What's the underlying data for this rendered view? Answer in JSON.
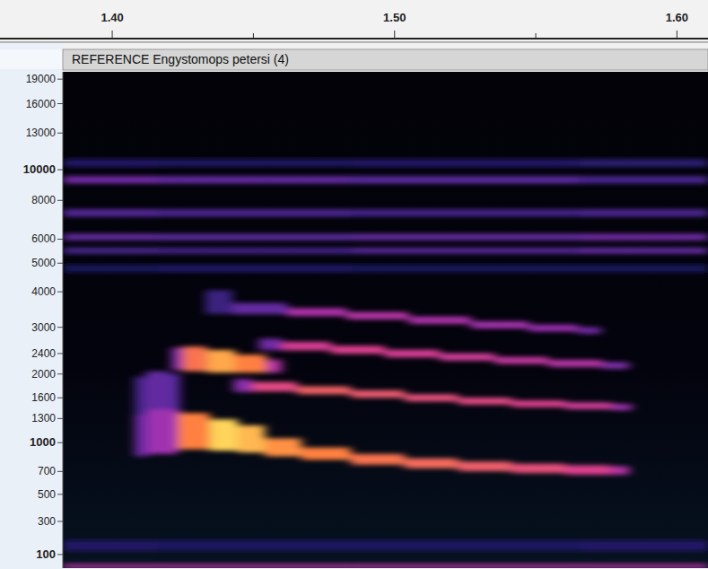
{
  "chart_data": {
    "type": "spectrogram",
    "title": "REFERENCE Engystomops petersi (4)",
    "xlim": [
      1.3825,
      1.611
    ],
    "ylim": [
      30,
      20000
    ],
    "xticks": [
      {
        "value": 1.4,
        "label": "1.40"
      },
      {
        "value": 1.5,
        "label": "1.50"
      },
      {
        "value": 1.6,
        "label": "1.60"
      }
    ],
    "xticks_minor": [
      1.45,
      1.55
    ],
    "yticks": [
      100,
      300,
      500,
      700,
      1000,
      1300,
      1600,
      2000,
      2400,
      3000,
      4000,
      5000,
      6000,
      8000,
      10000,
      13000,
      16000,
      19000
    ],
    "series": [
      {
        "x": [
          1.3825,
          1.45,
          1.52,
          1.611
        ],
        "values": [
          150,
          150,
          150,
          150
        ],
        "bandwidth": [
          60,
          60,
          60,
          60
        ],
        "intensity": [
          0.22,
          0.2,
          0.2,
          0.22
        ]
      },
      {
        "x": [
          1.3825,
          1.45,
          1.52,
          1.611
        ],
        "values": [
          40,
          40,
          40,
          40
        ],
        "bandwidth": [
          20,
          20,
          20,
          20
        ],
        "intensity": [
          0.6,
          0.6,
          0.6,
          0.6
        ]
      },
      {
        "x": [
          1.3825,
          1.45,
          1.52,
          1.611
        ],
        "values": [
          10500,
          10500,
          10500,
          10500
        ],
        "bandwidth": [
          600,
          600,
          600,
          600
        ],
        "intensity": [
          0.22,
          0.2,
          0.22,
          0.25
        ]
      },
      {
        "x": [
          1.3825,
          1.45,
          1.52,
          1.611
        ],
        "values": [
          9300,
          9300,
          9300,
          9300
        ],
        "bandwidth": [
          500,
          500,
          500,
          500
        ],
        "intensity": [
          0.45,
          0.42,
          0.4,
          0.35
        ]
      },
      {
        "x": [
          1.3825,
          1.45,
          1.52,
          1.611
        ],
        "values": [
          7300,
          7300,
          7300,
          7300
        ],
        "bandwidth": [
          400,
          400,
          400,
          400
        ],
        "intensity": [
          0.38,
          0.35,
          0.33,
          0.35
        ]
      },
      {
        "x": [
          1.3825,
          1.45,
          1.52,
          1.611
        ],
        "values": [
          6100,
          6100,
          6100,
          6100
        ],
        "bandwidth": [
          300,
          300,
          300,
          300
        ],
        "intensity": [
          0.42,
          0.4,
          0.42,
          0.45
        ]
      },
      {
        "x": [
          1.3825,
          1.45,
          1.52,
          1.611
        ],
        "values": [
          5500,
          5500,
          5500,
          5500
        ],
        "bandwidth": [
          250,
          250,
          250,
          250
        ],
        "intensity": [
          0.35,
          0.33,
          0.38,
          0.42
        ]
      },
      {
        "x": [
          1.3825,
          1.45,
          1.52,
          1.611
        ],
        "values": [
          4800,
          4800,
          4800,
          4800
        ],
        "bandwidth": [
          300,
          300,
          300,
          300
        ],
        "intensity": [
          0.18,
          0.2,
          0.18,
          0.18
        ]
      },
      {
        "x": [
          1.408,
          1.416,
          1.424
        ],
        "values": [
          1450,
          1500,
          1500
        ],
        "bandwidth": [
          1000,
          1100,
          1000
        ],
        "intensity": [
          0.35,
          0.42,
          0.4
        ]
      },
      {
        "x": [
          1.408,
          1.4175,
          1.429,
          1.44,
          1.449,
          1.459,
          1.475,
          1.494,
          1.513,
          1.532,
          1.551,
          1.57,
          1.583
        ],
        "values": [
          1100,
          1150,
          1150,
          1100,
          1050,
          950,
          880,
          820,
          780,
          750,
          730,
          715,
          710
        ],
        "bandwidth": [
          500,
          550,
          450,
          380,
          320,
          200,
          130,
          110,
          100,
          95,
          90,
          90,
          80
        ],
        "intensity": [
          0.45,
          0.55,
          0.85,
          1.0,
          0.95,
          0.88,
          0.85,
          0.82,
          0.8,
          0.77,
          0.74,
          0.7,
          0.6
        ]
      },
      {
        "x": [
          1.443,
          1.456,
          1.475,
          1.494,
          1.513,
          1.532,
          1.551,
          1.57,
          1.584
        ],
        "values": [
          1800,
          1780,
          1720,
          1660,
          1600,
          1550,
          1510,
          1480,
          1460
        ],
        "bandwidth": [
          220,
          160,
          130,
          120,
          110,
          105,
          100,
          100,
          90
        ],
        "intensity": [
          0.5,
          0.72,
          0.78,
          0.76,
          0.74,
          0.72,
          0.7,
          0.66,
          0.55
        ]
      },
      {
        "x": [
          1.421,
          1.429,
          1.438,
          1.449,
          1.46
        ],
        "values": [
          2300,
          2300,
          2250,
          2200,
          2150
        ],
        "bandwidth": [
          450,
          500,
          450,
          350,
          250
        ],
        "intensity": [
          0.5,
          0.82,
          0.92,
          0.85,
          0.6
        ]
      },
      {
        "x": [
          1.452,
          1.468,
          1.487,
          1.506,
          1.526,
          1.545,
          1.564,
          1.583
        ],
        "values": [
          2600,
          2560,
          2480,
          2400,
          2330,
          2260,
          2200,
          2160
        ],
        "bandwidth": [
          260,
          190,
          170,
          160,
          150,
          140,
          140,
          130
        ],
        "intensity": [
          0.45,
          0.68,
          0.7,
          0.68,
          0.66,
          0.63,
          0.6,
          0.48
        ]
      },
      {
        "x": [
          1.433,
          1.452,
          1.472,
          1.494,
          1.516,
          1.538,
          1.557,
          1.573
        ],
        "values": [
          3700,
          3500,
          3400,
          3300,
          3180,
          3060,
          2980,
          2920
        ],
        "bandwidth": [
          700,
          320,
          220,
          200,
          190,
          180,
          170,
          160
        ],
        "intensity": [
          0.3,
          0.42,
          0.58,
          0.6,
          0.58,
          0.56,
          0.53,
          0.45
        ]
      }
    ]
  }
}
